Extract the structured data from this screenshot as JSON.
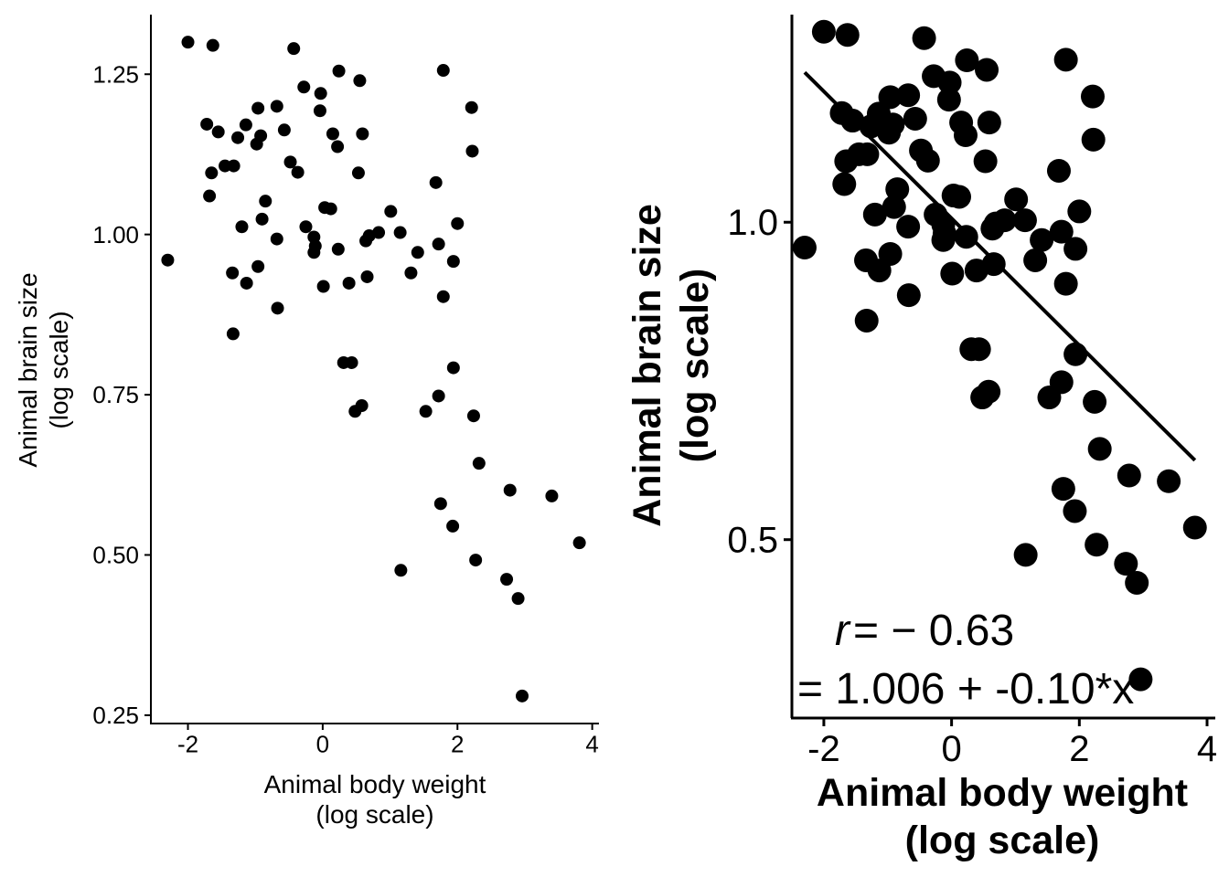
{
  "chart_data": [
    {
      "type": "scatter",
      "xlabel": [
        "Animal body weight",
        "(log scale)"
      ],
      "ylabel": [
        "Animal brain size",
        "(log scale)"
      ],
      "xlim": [
        -2.55,
        4.1
      ],
      "ylim": [
        0.237,
        1.343
      ],
      "xticks": [
        -2,
        0,
        2,
        4
      ],
      "xtick_labels": [
        "-2",
        "0",
        "2",
        "4"
      ],
      "yticks": [
        0.25,
        0.5,
        0.75,
        1.0,
        1.25
      ],
      "ytick_labels": [
        "0.25",
        "0.50",
        "0.75",
        "1.00",
        "1.25"
      ],
      "grid": false,
      "series": [
        {
          "points": [
            [
              -2.3,
              0.96
            ],
            [
              -2.0,
              1.3
            ],
            [
              -1.63,
              1.295
            ],
            [
              -1.72,
              1.172
            ],
            [
              -1.55,
              1.16
            ],
            [
              -1.65,
              1.096
            ],
            [
              -1.68,
              1.06
            ],
            [
              -1.45,
              1.107
            ],
            [
              -1.32,
              1.107
            ],
            [
              -1.26,
              1.151
            ],
            [
              -1.14,
              1.171
            ],
            [
              -0.96,
              1.197
            ],
            [
              -0.92,
              1.154
            ],
            [
              -0.98,
              1.141
            ],
            [
              -0.68,
              1.2
            ],
            [
              -0.57,
              1.163
            ],
            [
              -0.48,
              1.113
            ],
            [
              -0.37,
              1.097
            ],
            [
              -0.43,
              1.29
            ],
            [
              -0.28,
              1.23
            ],
            [
              -0.03,
              1.22
            ],
            [
              -0.04,
              1.193
            ],
            [
              0.24,
              1.255
            ],
            [
              0.55,
              1.24
            ],
            [
              0.15,
              1.157
            ],
            [
              0.59,
              1.157
            ],
            [
              0.22,
              1.137
            ],
            [
              0.53,
              1.096
            ],
            [
              0.03,
              1.042
            ],
            [
              0.12,
              1.04
            ],
            [
              -0.85,
              1.052
            ],
            [
              -0.9,
              1.024
            ],
            [
              -1.2,
              1.012
            ],
            [
              -0.68,
              0.993
            ],
            [
              -0.25,
              1.012
            ],
            [
              -0.13,
              0.996
            ],
            [
              -0.11,
              0.982
            ],
            [
              -0.13,
              0.972
            ],
            [
              0.23,
              0.977
            ],
            [
              0.69,
              0.998
            ],
            [
              0.64,
              0.99
            ],
            [
              0.83,
              1.003
            ],
            [
              1.01,
              1.036
            ],
            [
              1.15,
              1.003
            ],
            [
              1.41,
              0.972
            ],
            [
              1.72,
              0.985
            ],
            [
              1.68,
              1.081
            ],
            [
              1.79,
              1.256
            ],
            [
              2.21,
              1.198
            ],
            [
              2.22,
              1.13
            ],
            [
              2.0,
              1.017
            ],
            [
              1.94,
              0.958
            ],
            [
              -0.96,
              0.95
            ],
            [
              -1.34,
              0.94
            ],
            [
              -1.13,
              0.924
            ],
            [
              0.01,
              0.919
            ],
            [
              0.39,
              0.924
            ],
            [
              0.66,
              0.934
            ],
            [
              1.31,
              0.94
            ],
            [
              1.79,
              0.903
            ],
            [
              -0.67,
              0.885
            ],
            [
              -1.33,
              0.845
            ],
            [
              0.31,
              0.8
            ],
            [
              0.43,
              0.8
            ],
            [
              1.94,
              0.792
            ],
            [
              0.58,
              0.733
            ],
            [
              0.48,
              0.724
            ],
            [
              1.53,
              0.724
            ],
            [
              1.72,
              0.748
            ],
            [
              2.24,
              0.717
            ],
            [
              2.32,
              0.643
            ],
            [
              2.78,
              0.601
            ],
            [
              3.4,
              0.592
            ],
            [
              1.75,
              0.58
            ],
            [
              1.93,
              0.545
            ],
            [
              3.81,
              0.519
            ],
            [
              2.27,
              0.492
            ],
            [
              1.16,
              0.476
            ],
            [
              2.73,
              0.462
            ],
            [
              2.9,
              0.432
            ],
            [
              2.96,
              0.28
            ]
          ]
        }
      ]
    },
    {
      "type": "scatter",
      "xlabel": [
        "Animal body weight",
        "(log scale)"
      ],
      "ylabel": [
        "Animal brain size",
        "(log scale)"
      ],
      "xlim": [
        -2.5,
        4.1
      ],
      "ylim": [
        0.219,
        1.327
      ],
      "xticks": [
        -2,
        0,
        2,
        4
      ],
      "xtick_labels": [
        "-2",
        "0",
        "2",
        "4"
      ],
      "yticks": [
        0.5,
        1.0
      ],
      "ytick_labels": [
        "0.5",
        "1.0"
      ],
      "grid": false,
      "series": [
        {
          "points": [
            [
              -2.3,
              0.96
            ],
            [
              -2.0,
              1.3
            ],
            [
              -1.63,
              1.295
            ],
            [
              -1.72,
              1.172
            ],
            [
              -1.55,
              1.16
            ],
            [
              -1.65,
              1.096
            ],
            [
              -1.68,
              1.06
            ],
            [
              -1.45,
              1.107
            ],
            [
              -1.32,
              1.107
            ],
            [
              -1.26,
              1.151
            ],
            [
              -1.14,
              1.171
            ],
            [
              -0.96,
              1.197
            ],
            [
              -0.92,
              1.154
            ],
            [
              -0.98,
              1.141
            ],
            [
              -0.68,
              1.2
            ],
            [
              -0.57,
              1.163
            ],
            [
              -0.48,
              1.113
            ],
            [
              -0.37,
              1.097
            ],
            [
              -0.43,
              1.29
            ],
            [
              -0.28,
              1.23
            ],
            [
              -0.03,
              1.22
            ],
            [
              -0.04,
              1.193
            ],
            [
              0.24,
              1.255
            ],
            [
              0.55,
              1.24
            ],
            [
              0.15,
              1.157
            ],
            [
              0.59,
              1.157
            ],
            [
              0.22,
              1.137
            ],
            [
              0.53,
              1.096
            ],
            [
              0.03,
              1.042
            ],
            [
              0.12,
              1.04
            ],
            [
              -0.85,
              1.052
            ],
            [
              -0.9,
              1.024
            ],
            [
              -1.2,
              1.012
            ],
            [
              -0.68,
              0.993
            ],
            [
              -0.25,
              1.012
            ],
            [
              -0.13,
              0.996
            ],
            [
              -0.11,
              0.982
            ],
            [
              -0.13,
              0.972
            ],
            [
              0.23,
              0.977
            ],
            [
              0.69,
              0.998
            ],
            [
              0.64,
              0.99
            ],
            [
              0.83,
              1.003
            ],
            [
              1.01,
              1.036
            ],
            [
              1.15,
              1.003
            ],
            [
              1.41,
              0.972
            ],
            [
              1.72,
              0.985
            ],
            [
              1.68,
              1.081
            ],
            [
              1.79,
              1.256
            ],
            [
              2.21,
              1.198
            ],
            [
              2.22,
              1.13
            ],
            [
              2.0,
              1.017
            ],
            [
              1.94,
              0.958
            ],
            [
              -0.96,
              0.95
            ],
            [
              -1.34,
              0.94
            ],
            [
              -1.13,
              0.924
            ],
            [
              0.01,
              0.919
            ],
            [
              0.39,
              0.924
            ],
            [
              0.66,
              0.934
            ],
            [
              1.31,
              0.94
            ],
            [
              1.79,
              0.903
            ],
            [
              -0.67,
              0.885
            ],
            [
              -1.33,
              0.845
            ],
            [
              0.31,
              0.8
            ],
            [
              0.43,
              0.8
            ],
            [
              1.94,
              0.792
            ],
            [
              0.58,
              0.733
            ],
            [
              0.48,
              0.724
            ],
            [
              1.53,
              0.724
            ],
            [
              1.72,
              0.748
            ],
            [
              2.24,
              0.717
            ],
            [
              2.32,
              0.643
            ],
            [
              2.78,
              0.601
            ],
            [
              3.4,
              0.592
            ],
            [
              1.75,
              0.58
            ],
            [
              1.93,
              0.545
            ],
            [
              3.81,
              0.519
            ],
            [
              2.27,
              0.492
            ],
            [
              1.16,
              0.476
            ],
            [
              2.73,
              0.462
            ],
            [
              2.9,
              0.432
            ],
            [
              2.96,
              0.28
            ]
          ]
        }
      ],
      "fit_line": {
        "intercept": 1.006,
        "slope": -0.1,
        "x_range": [
          -2.3,
          3.81
        ]
      },
      "annotations": [
        {
          "text": "= 1.006 + -0.10*x"
        }
      ],
      "correlation": {
        "symbol": "r",
        "equals": "= − 0.63"
      }
    }
  ]
}
